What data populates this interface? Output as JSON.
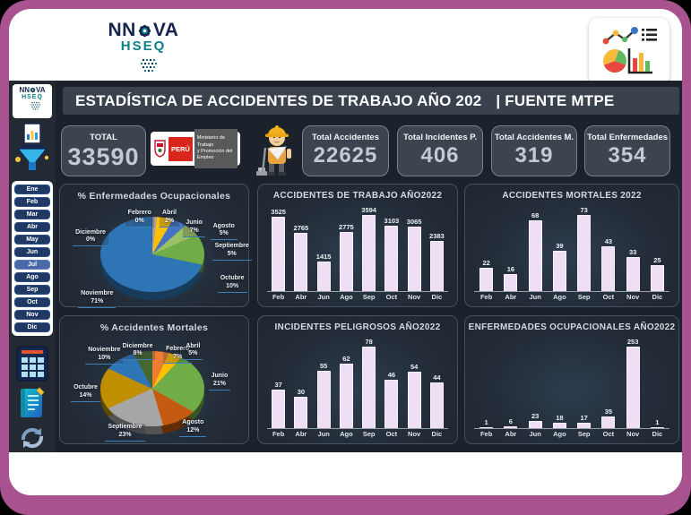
{
  "window": {
    "bg_color": "#000000",
    "frame_color": "#a8538f"
  },
  "header": {
    "logo": {
      "prefix": "NN",
      "suffix": "VA",
      "line2": "HSEQ"
    },
    "analytics_icon": "analytics-collage-icon"
  },
  "dashboard": {
    "title": "ESTADÍSTICA DE ACCIDENTES DE TRABAJO AÑO 202",
    "title_suffix": "| FUENTE MTPE",
    "kpis": [
      {
        "label": "TOTAL",
        "value": "33590"
      },
      {
        "label": "Total Accidentes",
        "value": "22625"
      },
      {
        "label": "Total Incidentes P.",
        "value": "406"
      },
      {
        "label": "Total Accidentes M.",
        "value": "319"
      },
      {
        "label": "Total Enfermedades",
        "value": "354"
      }
    ],
    "mtpe_logo": {
      "country": "PERÚ",
      "ministry_line1": "Ministerio de Trabajo",
      "ministry_line2": "y Promoción del Empleo"
    },
    "sidebar": {
      "months": [
        "Ene",
        "Feb",
        "Mar",
        "Abr",
        "May",
        "Jun",
        "Jul",
        "Ago",
        "Sep",
        "Oct",
        "Nov",
        "Dic"
      ],
      "active_month": "Jul",
      "icons": [
        "filter-funnel-icon",
        "calculator-grid-icon",
        "notebook-icon",
        "refresh-icon"
      ]
    }
  },
  "chart_data": [
    {
      "type": "bar",
      "title": "ACCIDENTES DE TRABAJO AÑO2022",
      "categories": [
        "Feb",
        "Abr",
        "Jun",
        "Ago",
        "Sep",
        "Oct",
        "Nov",
        "Dic"
      ],
      "values": [
        3525,
        2765,
        1415,
        2775,
        3594,
        3103,
        3065,
        2383
      ],
      "bar_color": "#efdff4",
      "value_labels": true,
      "grid": false,
      "legend": "none"
    },
    {
      "type": "bar",
      "title": "ACCIDENTES MORTALES 2022",
      "categories": [
        "Feb",
        "Abr",
        "Jun",
        "Ago",
        "Sep",
        "Oct",
        "Nov",
        "Dic"
      ],
      "values": [
        22,
        16,
        68,
        39,
        73,
        43,
        33,
        25
      ],
      "bar_color": "#efdff4",
      "value_labels": true,
      "grid": false,
      "legend": "none"
    },
    {
      "type": "bar",
      "title": "INCIDENTES PELIGROSOS AÑO2022",
      "categories": [
        "Feb",
        "Abr",
        "Jun",
        "Ago",
        "Sep",
        "Oct",
        "Nov",
        "Dic"
      ],
      "values": [
        37,
        30,
        55,
        62,
        78,
        46,
        54,
        44
      ],
      "bar_color": "#efdff4",
      "value_labels": true,
      "grid": false,
      "legend": "none"
    },
    {
      "type": "bar",
      "title": "ENFERMEDADES OCUPACIONALES AÑO2022",
      "categories": [
        "Feb",
        "Abr",
        "Jun",
        "Ago",
        "Sep",
        "Oct",
        "Nov",
        "Dic"
      ],
      "values": [
        1,
        6,
        23,
        18,
        17,
        35,
        253,
        1
      ],
      "bar_color": "#efdff4",
      "value_labels": true,
      "grid": false,
      "legend": "none"
    },
    {
      "type": "pie",
      "title": "% Enfermedades Ocupacionales",
      "slices": [
        {
          "label": "Febrero",
          "value": 1,
          "pct": 0,
          "pct_label": "0%",
          "color": "#ed7d31"
        },
        {
          "label": "Abril",
          "value": 6,
          "pct": 2,
          "pct_label": "2%",
          "color": "#a5a5a5"
        },
        {
          "label": "Junio",
          "value": 23,
          "pct": 7,
          "pct_label": "7%",
          "color": "#ffc000"
        },
        {
          "label": "Agosto",
          "value": 18,
          "pct": 5,
          "pct_label": "5%",
          "color": "#4472c4"
        },
        {
          "label": "Septiembre",
          "value": 17,
          "pct": 5,
          "pct_label": "5%",
          "color": "#9cc065"
        },
        {
          "label": "Octubre",
          "value": 35,
          "pct": 10,
          "pct_label": "10%",
          "color": "#70ad47"
        },
        {
          "label": "Noviembre",
          "value": 253,
          "pct": 71,
          "pct_label": "71%",
          "color": "#2e75b6"
        },
        {
          "label": "Diciembre",
          "value": 1,
          "pct": 0,
          "pct_label": "0%",
          "color": "#264478"
        }
      ]
    },
    {
      "type": "pie",
      "title": "% Accidentes Mortales",
      "slices": [
        {
          "label": "Febrero",
          "value": 22,
          "pct": 7,
          "pct_label": "7%",
          "color": "#ed7d31"
        },
        {
          "label": "Abril",
          "value": 16,
          "pct": 5,
          "pct_label": "5%",
          "color": "#ffc000"
        },
        {
          "label": "Junio",
          "value": 68,
          "pct": 21,
          "pct_label": "21%",
          "color": "#70ad47"
        },
        {
          "label": "Agosto",
          "value": 39,
          "pct": 12,
          "pct_label": "12%",
          "color": "#c55a11"
        },
        {
          "label": "Septiembre",
          "value": 73,
          "pct": 23,
          "pct_label": "23%",
          "color": "#a6a6a6"
        },
        {
          "label": "Octubre",
          "value": 43,
          "pct": 14,
          "pct_label": "14%",
          "color": "#bf8f00"
        },
        {
          "label": "Noviembre",
          "value": 33,
          "pct": 10,
          "pct_label": "10%",
          "color": "#2e75b6"
        },
        {
          "label": "Diciembre",
          "value": 25,
          "pct": 8,
          "pct_label": "8%",
          "color": "#44682d"
        }
      ]
    }
  ]
}
